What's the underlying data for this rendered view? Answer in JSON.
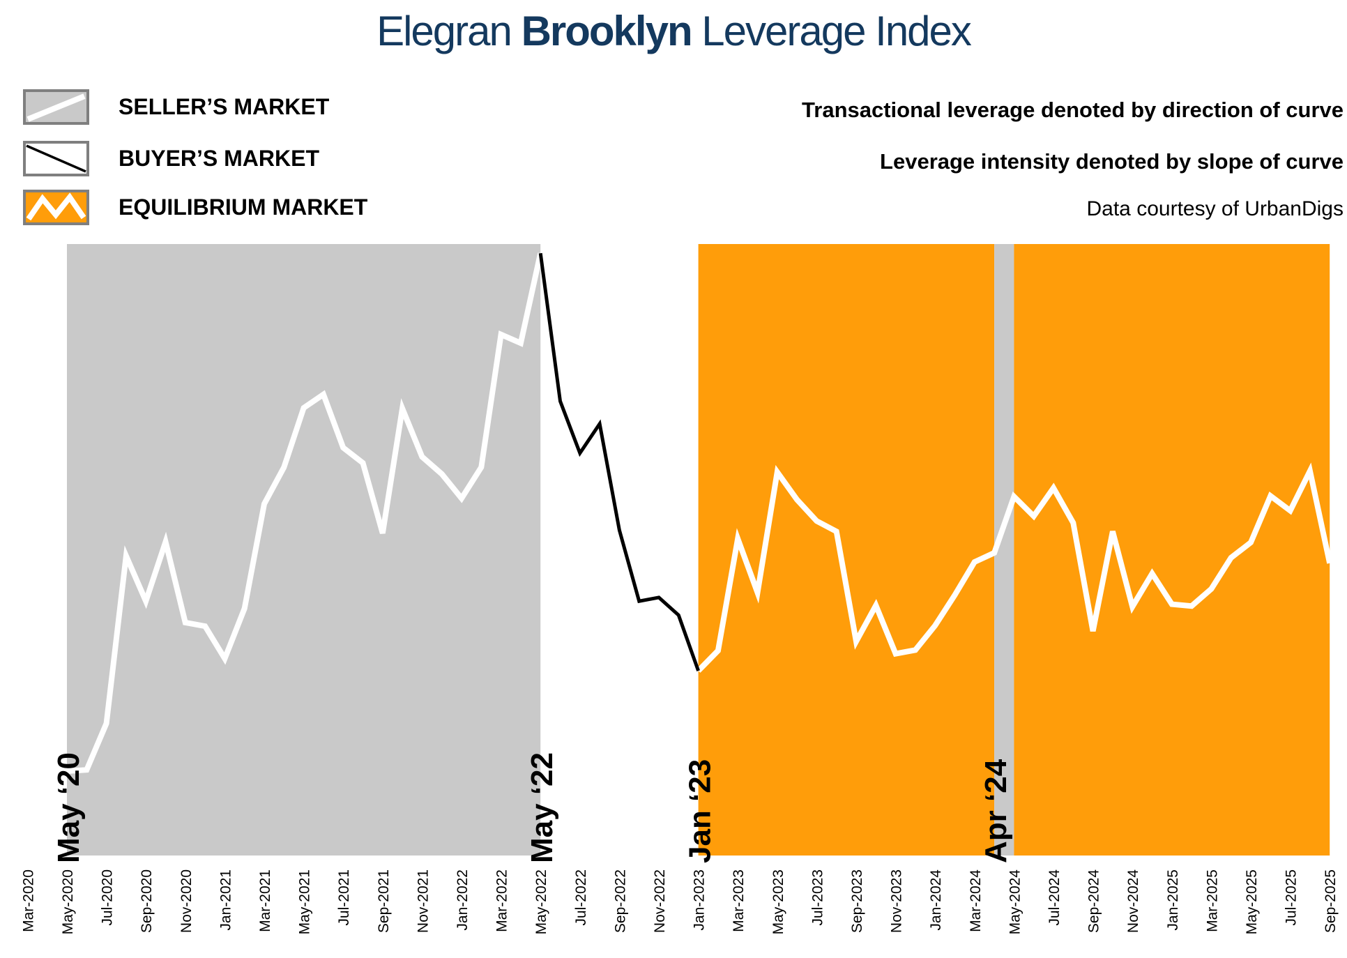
{
  "title": {
    "prefix": "Elegran ",
    "bold": "Brooklyn",
    "suffix": " Leverage Index"
  },
  "legend": {
    "items": [
      {
        "label": "SELLER’S MARKET",
        "swatch": "seller"
      },
      {
        "label": "BUYER’S MARKET",
        "swatch": "buyer"
      },
      {
        "label": "EQUILIBRIUM MARKET",
        "swatch": "equilibrium"
      }
    ]
  },
  "notes": {
    "line1": "Transactional leverage denoted by direction of curve",
    "line2": "Leverage intensity denoted by slope of curve",
    "credit": "Data courtesy of UrbanDigs"
  },
  "colors": {
    "title_navy": "#14395E",
    "seller_gray": "#C9C9C9",
    "equilibrium_orange": "#FF9D0A",
    "buyer_line": "#000000",
    "seller_line": "#FFFFFF",
    "legend_border": "#7F7F7F",
    "text_black": "#000000"
  },
  "chart_data": {
    "type": "line",
    "title": "Elegran Brooklyn Leverage Index",
    "ylim": [
      0,
      100
    ],
    "grid": false,
    "y_axis_shown": false,
    "months": [
      "May-2020",
      "Jun-2020",
      "Jul-2020",
      "Aug-2020",
      "Sep-2020",
      "Oct-2020",
      "Nov-2020",
      "Dec-2020",
      "Jan-2021",
      "Feb-2021",
      "Mar-2021",
      "Apr-2021",
      "May-2021",
      "Jun-2021",
      "Jul-2021",
      "Aug-2021",
      "Sep-2021",
      "Oct-2021",
      "Nov-2021",
      "Dec-2021",
      "Jan-2022",
      "Feb-2022",
      "Mar-2022",
      "Apr-2022",
      "May-2022",
      "Jun-2022",
      "Jul-2022",
      "Aug-2022",
      "Sep-2022",
      "Oct-2022",
      "Nov-2022",
      "Dec-2022",
      "Jan-2023",
      "Feb-2023",
      "Mar-2023",
      "Apr-2023",
      "May-2023",
      "Jun-2023",
      "Jul-2023",
      "Aug-2023",
      "Sep-2023",
      "Oct-2023",
      "Nov-2023",
      "Dec-2023",
      "Jan-2024",
      "Feb-2024",
      "Mar-2024",
      "Apr-2024",
      "May-2024",
      "Jun-2024",
      "Jul-2024",
      "Aug-2024",
      "Sep-2024",
      "Oct-2024",
      "Nov-2024",
      "Dec-2024",
      "Jan-2025",
      "Feb-2025",
      "Mar-2025",
      "Apr-2025",
      "May-2025",
      "Jun-2025",
      "Jul-2025",
      "Aug-2025",
      "Sep-2025"
    ],
    "values": [
      13.8,
      14.0,
      21.6,
      49.0,
      41.6,
      51.3,
      38.1,
      37.5,
      32.2,
      40.4,
      57.5,
      63.5,
      73.2,
      75.4,
      66.7,
      64.2,
      52.7,
      73.1,
      65.2,
      62.4,
      58.4,
      63.5,
      85.2,
      83.8,
      98.5,
      74.3,
      65.8,
      70.6,
      53.2,
      41.6,
      42.2,
      39.3,
      30.2,
      33.5,
      51.8,
      43.0,
      62.7,
      58.2,
      54.7,
      53.0,
      35.0,
      40.9,
      33.0,
      33.6,
      37.6,
      42.6,
      48.0,
      49.5,
      58.7,
      55.5,
      60.1,
      54.4,
      36.7,
      53.0,
      40.7,
      46.1,
      41.1,
      40.8,
      43.6,
      48.7,
      51.2,
      58.8,
      56.4,
      62.9,
      47.8
    ],
    "buyer_segment": {
      "from": "May-2022",
      "to": "Jan-2023"
    },
    "regions": [
      {
        "market": "seller",
        "from": "May-2020",
        "to": "May-2022"
      },
      {
        "market": "equilibrium",
        "from": "Jan-2023",
        "to": "Apr-2024"
      },
      {
        "market": "seller",
        "from": "Apr-2024",
        "to": "May-2024"
      },
      {
        "market": "equilibrium",
        "from": "May-2024",
        "to": "Sep-2025"
      }
    ],
    "era_labels": [
      {
        "text": "May ‘20",
        "month": "May-2020"
      },
      {
        "text": "May ‘22",
        "month": "May-2022"
      },
      {
        "text": "Jan ‘23",
        "month": "Jan-2023"
      },
      {
        "text": "Apr ‘24",
        "month": "Apr-2024"
      }
    ],
    "x_tick_labels": [
      "Mar-2020",
      "May-2020",
      "Jul-2020",
      "Sep-2020",
      "Nov-2020",
      "Jan-2021",
      "Mar-2021",
      "May-2021",
      "Jul-2021",
      "Sep-2021",
      "Nov-2021",
      "Jan-2022",
      "Mar-2022",
      "May-2022",
      "Jul-2022",
      "Sep-2022",
      "Nov-2022",
      "Jan-2023",
      "Mar-2023",
      "May-2023",
      "Jul-2023",
      "Sep-2023",
      "Nov-2023",
      "Jan-2024",
      "Mar-2024",
      "May-2024",
      "Jul-2024",
      "Sep-2024",
      "Nov-2024",
      "Jan-2025",
      "Mar-2025",
      "May-2025",
      "Jul-2025",
      "Sep-2025"
    ]
  }
}
